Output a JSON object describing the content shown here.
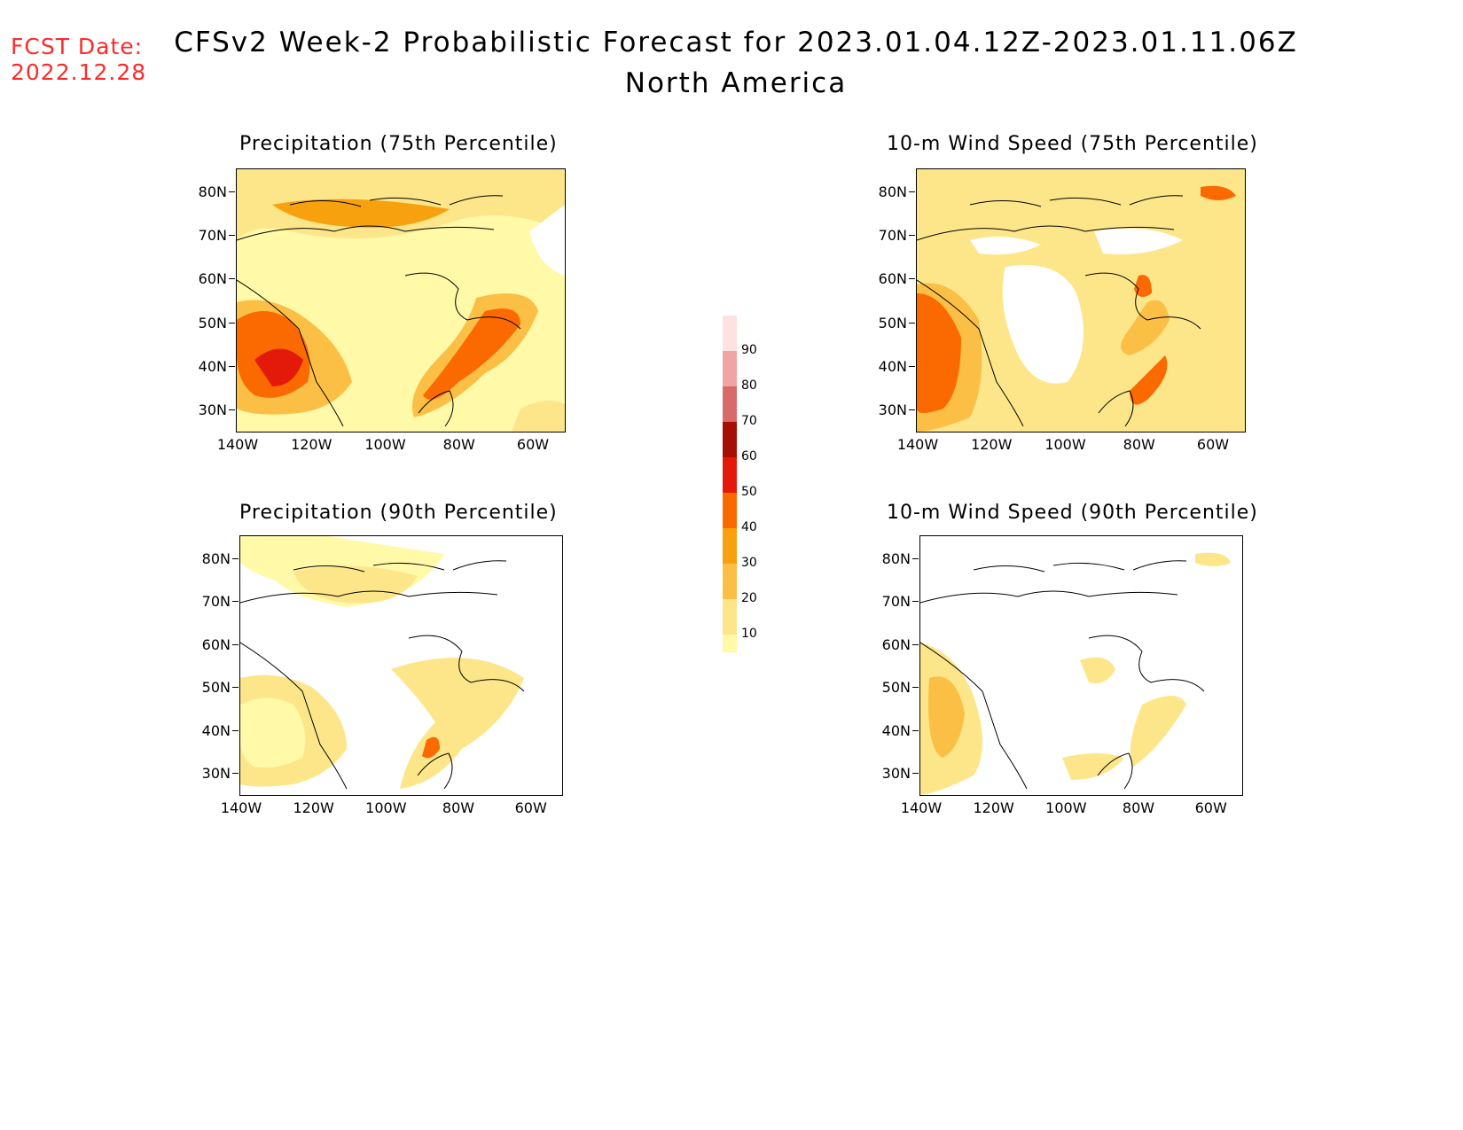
{
  "header": {
    "fcst_label": "FCST Date:",
    "fcst_date": "2022.12.28",
    "title_line1": "CFSv2 Week-2 Probabilistic Forecast for 2023.01.04.12Z-2023.01.11.06Z",
    "title_line2": "North America"
  },
  "panels": [
    {
      "title": "Precipitation (75th Percentile)"
    },
    {
      "title": "10-m Wind Speed (75th Percentile)"
    },
    {
      "title": "Precipitation (90th Percentile)"
    },
    {
      "title": "10-m Wind Speed (90th Percentile)"
    }
  ],
  "axes": {
    "lat_labels": [
      "80N",
      "70N",
      "60N",
      "50N",
      "40N",
      "30N"
    ],
    "lon_labels": [
      "140W",
      "120W",
      "100W",
      "80W",
      "60W"
    ]
  },
  "colorbar": {
    "levels": [
      "10",
      "20",
      "30",
      "40",
      "50",
      "60",
      "70",
      "80",
      "90"
    ],
    "colors": [
      "#fff9a8",
      "#fde68a",
      "#fbbf45",
      "#f8a10f",
      "#fb6a00",
      "#e31a0a",
      "#a50f04",
      "#d96a6a",
      "#f0a5a5",
      "#fde2e2"
    ]
  }
}
